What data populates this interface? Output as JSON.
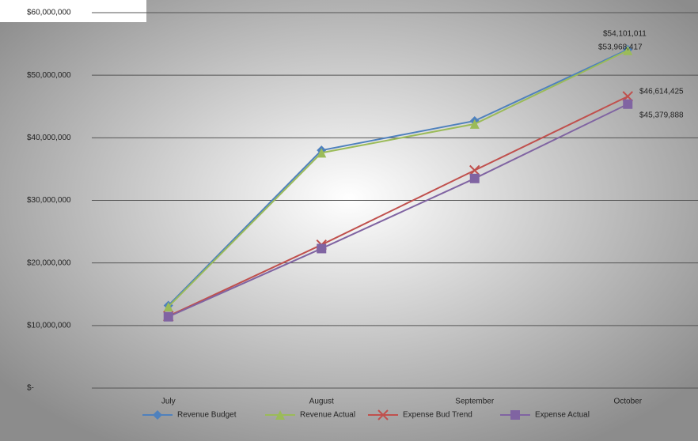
{
  "chart_data": {
    "type": "line",
    "categories": [
      "July",
      "August",
      "September",
      "October"
    ],
    "series": [
      {
        "name": "Revenue Budget",
        "color": "#4f81bd",
        "marker": "diamond",
        "values": [
          13200000,
          38000000,
          42700000,
          54101011
        ],
        "value_labels": [
          null,
          null,
          null,
          "$54,101,011"
        ]
      },
      {
        "name": "Revenue Actual",
        "color": "#9bbb59",
        "marker": "triangle",
        "values": [
          13000000,
          37600000,
          42200000,
          53968417
        ],
        "value_labels": [
          null,
          null,
          null,
          "$53,968,417"
        ]
      },
      {
        "name": "Expense Bud Trend",
        "color": "#c0504d",
        "marker": "cross",
        "values": [
          11500000,
          22900000,
          34800000,
          46614425
        ],
        "value_labels": [
          null,
          null,
          null,
          "$46,614,425"
        ]
      },
      {
        "name": "Expense Actual",
        "color": "#8064a2",
        "marker": "square",
        "values": [
          11400000,
          22300000,
          33500000,
          45379888
        ],
        "value_labels": [
          null,
          null,
          null,
          "$45,379,888"
        ]
      }
    ],
    "ylim": [
      0,
      60000000
    ],
    "yticks": [
      {
        "value": 0,
        "label": "$-"
      },
      {
        "value": 10000000,
        "label": "$10,000,000"
      },
      {
        "value": 20000000,
        "label": "$20,000,000"
      },
      {
        "value": 30000000,
        "label": "$30,000,000"
      },
      {
        "value": 40000000,
        "label": "$40,000,000"
      },
      {
        "value": 50000000,
        "label": "$50,000,000"
      },
      {
        "value": 60000000,
        "label": "$60,000,000"
      }
    ],
    "grid": true
  }
}
